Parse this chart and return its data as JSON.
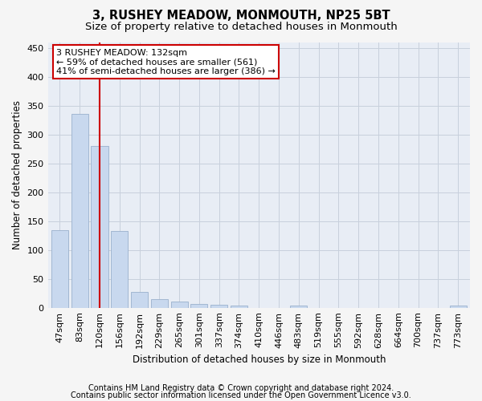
{
  "title": "3, RUSHEY MEADOW, MONMOUTH, NP25 5BT",
  "subtitle": "Size of property relative to detached houses in Monmouth",
  "xlabel": "Distribution of detached houses by size in Monmouth",
  "ylabel": "Number of detached properties",
  "categories": [
    "47sqm",
    "83sqm",
    "120sqm",
    "156sqm",
    "192sqm",
    "229sqm",
    "265sqm",
    "301sqm",
    "337sqm",
    "374sqm",
    "410sqm",
    "446sqm",
    "483sqm",
    "519sqm",
    "555sqm",
    "592sqm",
    "628sqm",
    "664sqm",
    "700sqm",
    "737sqm",
    "773sqm"
  ],
  "values": [
    134,
    335,
    280,
    133,
    27,
    15,
    10,
    6,
    5,
    4,
    0,
    0,
    4,
    0,
    0,
    0,
    0,
    0,
    0,
    0,
    4
  ],
  "bar_color": "#c8d8ee",
  "bar_edge_color": "#9ab0cc",
  "vline_x_index": 2,
  "vline_color": "#cc0000",
  "annotation_line1": "3 RUSHEY MEADOW: 132sqm",
  "annotation_line2": "← 59% of detached houses are smaller (561)",
  "annotation_line3": "41% of semi-detached houses are larger (386) →",
  "annotation_box_color": "#ffffff",
  "annotation_box_edge_color": "#cc0000",
  "ylim": [
    0,
    460
  ],
  "yticks": [
    0,
    50,
    100,
    150,
    200,
    250,
    300,
    350,
    400,
    450
  ],
  "grid_color": "#c8d0dc",
  "bg_color": "#e8edf5",
  "fig_bg_color": "#f5f5f5",
  "footer_line1": "Contains HM Land Registry data © Crown copyright and database right 2024.",
  "footer_line2": "Contains public sector information licensed under the Open Government Licence v3.0.",
  "title_fontsize": 10.5,
  "subtitle_fontsize": 9.5,
  "xlabel_fontsize": 8.5,
  "ylabel_fontsize": 8.5,
  "footer_fontsize": 7.0,
  "tick_fontsize": 8.0,
  "annot_fontsize": 8.0
}
